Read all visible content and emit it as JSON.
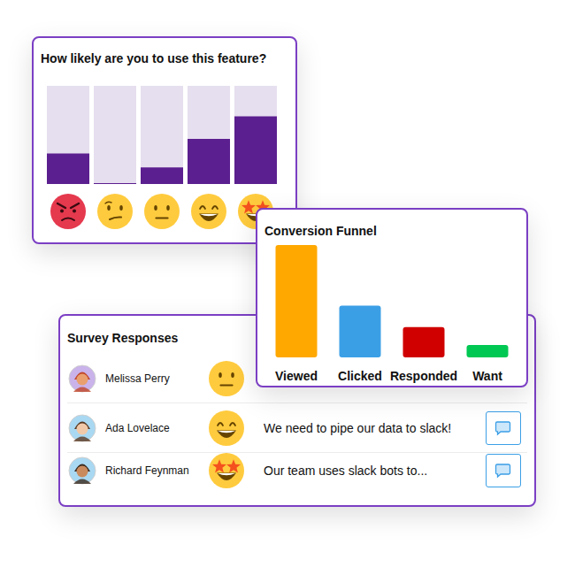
{
  "chart_data": [
    {
      "type": "bar",
      "title": "How likely are you to use this feature?",
      "categories": [
        null,
        null,
        null,
        null,
        null
      ],
      "values": [
        31,
        1,
        17,
        46,
        69
      ],
      "color": "#5B1F8F",
      "ylim": [
        0,
        100
      ],
      "tick_labels": false
    },
    {
      "type": "bar",
      "title": "Conversion Funnel",
      "categories": [
        "Viewed",
        "Clicked",
        "Responded",
        "Want"
      ],
      "values": [
        100,
        46,
        27,
        11
      ],
      "colors": [
        "#FFA800",
        "#3B9FE6",
        "#D00000",
        "#00C853"
      ],
      "ylim": [
        0,
        100
      ],
      "tick_labels": "x"
    }
  ],
  "survey": {
    "title": "Survey Responses",
    "rows": [
      {
        "name": "Melissa Perry"
      },
      {
        "name": "Ada Lovelace",
        "comment": "We need to pipe our data to slack!"
      },
      {
        "name": "Richard Feynman",
        "comment": "Our team uses slack bots to..."
      }
    ]
  }
}
